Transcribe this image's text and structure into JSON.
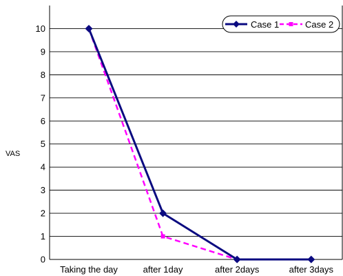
{
  "chart_data": {
    "type": "line",
    "categories": [
      "Taking the day",
      "after 1day",
      "after 2days",
      "after 3days"
    ],
    "series": [
      {
        "name": "Case 1",
        "values": [
          10,
          2,
          0,
          0
        ],
        "color": "#0a0a80",
        "style": "solid",
        "marker": "diamond"
      },
      {
        "name": "Case 2",
        "values": [
          10,
          1,
          0,
          null
        ],
        "color": "#ff00ff",
        "style": "dashed",
        "marker": "square"
      }
    ],
    "yticks": [
      "0",
      "1",
      "2",
      "3",
      "4",
      "5",
      "6",
      "7",
      "8",
      "9",
      "10"
    ],
    "ylim": [
      0,
      11
    ],
    "ylabel": "VAS",
    "xlabel": "",
    "grid": true,
    "legend_position": "top-right"
  }
}
